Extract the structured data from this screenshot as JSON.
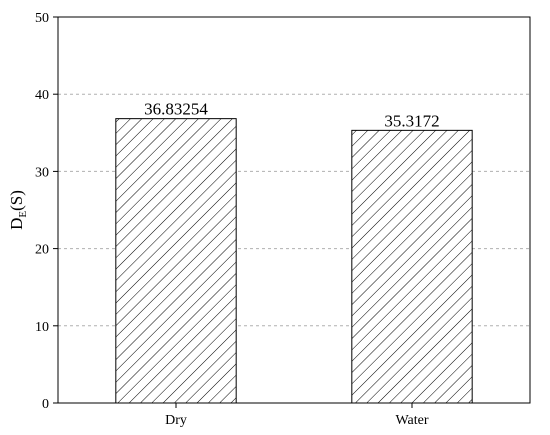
{
  "chart_data": {
    "type": "bar",
    "y_label": [
      "D",
      "E",
      "(S)"
    ],
    "categories": [
      "Dry",
      "Water"
    ],
    "values": [
      36.83254,
      35.3172
    ],
    "color": "#000000",
    "pattern": "hatch",
    "ylim": [
      0,
      50
    ],
    "yticks": [
      0,
      10,
      20,
      30,
      40,
      50
    ],
    "grid": true
  }
}
